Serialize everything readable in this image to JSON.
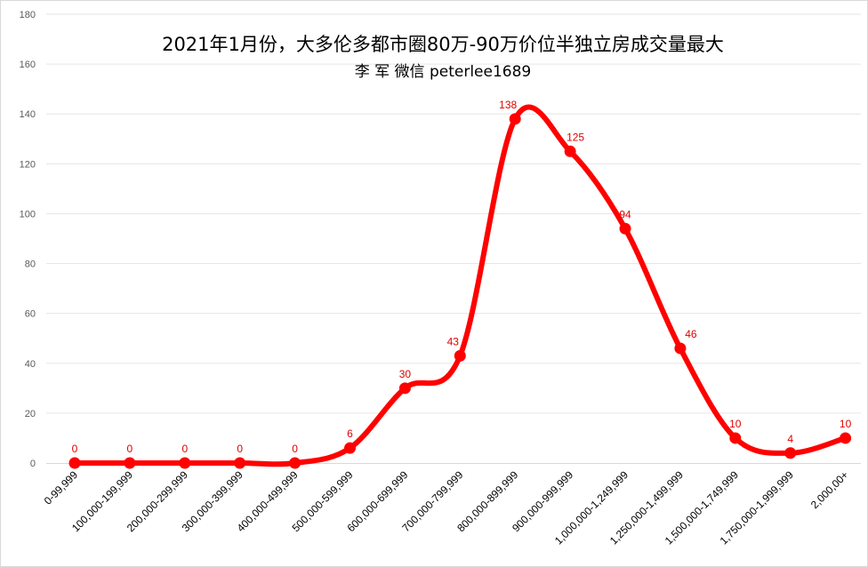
{
  "chart_data": {
    "type": "line",
    "title": "2021年1月份，大多伦多都市圈80万-90万价位半独立房成交量最大",
    "subtitle": "李 军 微信 peterlee1689",
    "categories": [
      "0-99,999",
      "100,000-199,999",
      "200,000-299,999",
      "300,000-399,999",
      "400,000-499,999",
      "500,000-599,999",
      "600,000-699,999",
      "700,000-799,999",
      "800,000-899,999",
      "900,000-999,999",
      "1,000,000-1,249,999",
      "1,250,000-1,499,999",
      "1,500,000-1,749,999",
      "1,750,000-1,999,999",
      "2,000,00+"
    ],
    "series": [
      {
        "values": [
          0,
          0,
          0,
          0,
          0,
          6,
          30,
          43,
          138,
          125,
          94,
          46,
          10,
          4,
          10
        ],
        "color": "#ff0000",
        "smooth": true
      }
    ],
    "ylim": [
      0,
      180
    ],
    "yticks": [
      0,
      20,
      40,
      60,
      80,
      100,
      120,
      140,
      160,
      180
    ],
    "grid": true,
    "legend": "none",
    "data_labels": true,
    "label_color": "#e00000"
  }
}
